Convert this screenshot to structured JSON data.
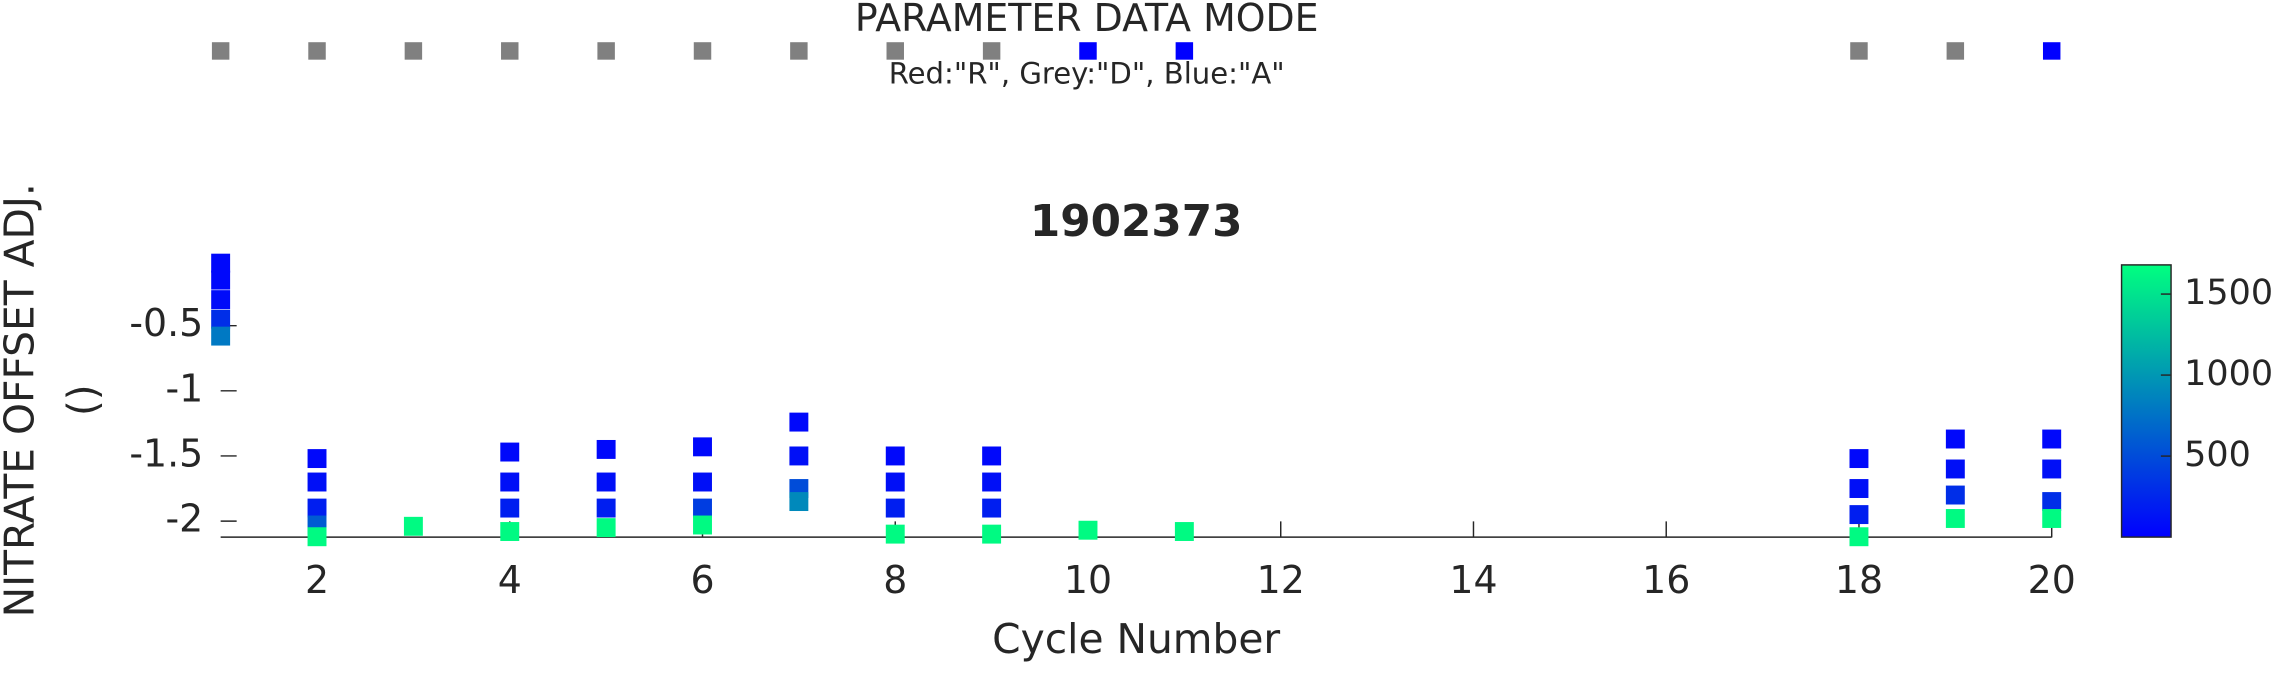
{
  "chart_data": [
    {
      "type": "strip",
      "title": "PARAMETER DATA MODE",
      "subtitle": "Red:\"R\", Grey:\"D\", Blue:\"A\"",
      "x": [
        1,
        2,
        3,
        4,
        5,
        6,
        7,
        8,
        9,
        10,
        11,
        18,
        19,
        20
      ],
      "colors": [
        "#808080",
        "#808080",
        "#808080",
        "#808080",
        "#808080",
        "#808080",
        "#808080",
        "#808080",
        "#808080",
        "#0000ff",
        "#0000ff",
        "#808080",
        "#808080",
        "#0000ff"
      ],
      "xlim": [
        1,
        20
      ]
    },
    {
      "type": "scatter",
      "title": "1902373",
      "xlabel": "Cycle Number",
      "ylabel": [
        "NITRATE OFFSET ADJ.",
        "()"
      ],
      "x": [
        1,
        1,
        1,
        1,
        1,
        2,
        2,
        2,
        2,
        2,
        3,
        4,
        4,
        4,
        4,
        5,
        5,
        5,
        5,
        6,
        6,
        6,
        6,
        7,
        7,
        7,
        7,
        8,
        8,
        8,
        8,
        9,
        9,
        9,
        9,
        10,
        11,
        18,
        18,
        18,
        18,
        19,
        19,
        19,
        19,
        20,
        20,
        20,
        20
      ],
      "y": [
        -0.02,
        -0.15,
        -0.3,
        -0.45,
        -0.58,
        -1.52,
        -1.7,
        -1.9,
        -2.03,
        -2.12,
        -2.04,
        -1.47,
        -1.7,
        -1.9,
        -2.08,
        -1.45,
        -1.7,
        -1.9,
        -2.05,
        -1.43,
        -1.7,
        -1.9,
        -2.03,
        -1.24,
        -1.5,
        -1.75,
        -1.85,
        -1.5,
        -1.7,
        -1.9,
        -2.1,
        -1.5,
        -1.7,
        -1.9,
        -2.1,
        -2.07,
        -2.08,
        -1.52,
        -1.75,
        -1.95,
        -2.12,
        -1.37,
        -1.6,
        -1.8,
        -1.98,
        -1.37,
        -1.6,
        -1.85,
        -1.98
      ],
      "c": [
        50,
        50,
        80,
        300,
        800,
        50,
        100,
        200,
        600,
        1650,
        1650,
        50,
        100,
        200,
        1650,
        50,
        100,
        200,
        1650,
        50,
        100,
        400,
        1650,
        50,
        100,
        500,
        900,
        50,
        100,
        200,
        1650,
        50,
        100,
        200,
        1650,
        1650,
        1650,
        50,
        100,
        200,
        1650,
        50,
        100,
        300,
        1650,
        50,
        100,
        300,
        1650
      ],
      "xlim": [
        1,
        20
      ],
      "ylim": [
        -2.125,
        0
      ],
      "xticks": [
        2,
        4,
        6,
        8,
        10,
        12,
        14,
        16,
        18,
        20
      ],
      "yticks": [
        -2,
        -1.5,
        -1,
        -0.5
      ],
      "colormap": [
        "#0000ff",
        "#00ff80"
      ],
      "clim": [
        0,
        1680
      ],
      "cticks": [
        500,
        1000,
        1500
      ]
    }
  ]
}
